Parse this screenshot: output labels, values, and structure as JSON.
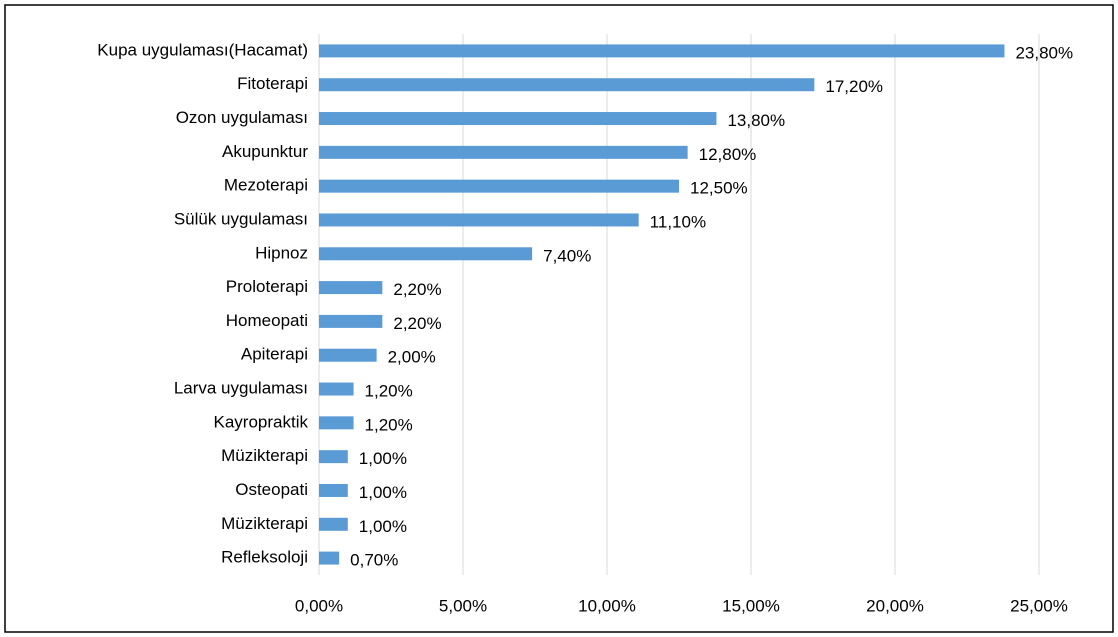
{
  "chart_data": {
    "type": "bar",
    "orientation": "horizontal",
    "categories": [
      "Kupa uygulaması(Hacamat)",
      "Fitoterapi",
      "Ozon uygulaması",
      "Akupunktur",
      "Mezoterapi",
      "Sülük uygulaması",
      "Hipnoz",
      "Proloterapi",
      "Homeopati",
      "Apiterapi",
      "Larva uygulaması",
      "Kayropraktik",
      "Müzikterapi",
      "Osteopati",
      "Müzikterapi",
      "Refleksoloji"
    ],
    "values": [
      23.8,
      17.2,
      13.8,
      12.8,
      12.5,
      11.1,
      7.4,
      2.2,
      2.2,
      2.0,
      1.2,
      1.2,
      1.0,
      1.0,
      1.0,
      0.7
    ],
    "value_labels": [
      "23,80%",
      "17,20%",
      "13,80%",
      "12,80%",
      "12,50%",
      "11,10%",
      "7,40%",
      "2,20%",
      "2,20%",
      "2,00%",
      "1,20%",
      "1,20%",
      "1,00%",
      "1,00%",
      "1,00%",
      "0,70%"
    ],
    "color": "#5b9bd5",
    "xlim": [
      0,
      25
    ],
    "xticks": [
      {
        "value": 0,
        "label": "0,00%"
      },
      {
        "value": 5,
        "label": "5,00%"
      },
      {
        "value": 10,
        "label": "10,00%"
      },
      {
        "value": 15,
        "label": "15,00%"
      },
      {
        "value": 20,
        "label": "20,00%"
      },
      {
        "value": 25,
        "label": "25,00%"
      }
    ],
    "grid": true
  }
}
